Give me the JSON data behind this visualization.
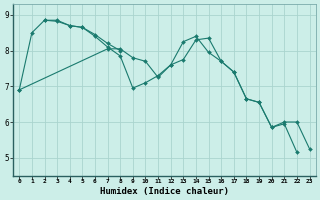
{
  "xlabel": "Humidex (Indice chaleur)",
  "background_color": "#cceee8",
  "grid_color": "#aad4ce",
  "line_color": "#1a7a6e",
  "xlim": [
    -0.5,
    23.5
  ],
  "ylim": [
    4.5,
    9.3
  ],
  "yticks": [
    5,
    6,
    7,
    8,
    9
  ],
  "xticks": [
    0,
    1,
    2,
    3,
    4,
    5,
    6,
    7,
    8,
    9,
    10,
    11,
    12,
    13,
    14,
    15,
    16,
    17,
    18,
    19,
    20,
    21,
    22,
    23
  ],
  "s1_x": [
    0,
    1,
    2,
    3,
    4,
    5,
    6,
    7,
    8
  ],
  "s1_y": [
    6.9,
    8.5,
    8.85,
    8.85,
    8.7,
    8.65,
    8.45,
    8.2,
    8.0
  ],
  "s2_x": [
    2,
    3,
    4,
    5,
    6,
    7,
    8,
    9,
    10,
    11,
    12,
    13,
    14,
    15,
    16,
    17,
    18,
    19,
    20,
    21,
    22
  ],
  "s2_y": [
    8.85,
    8.82,
    8.7,
    8.65,
    8.4,
    8.1,
    7.85,
    6.95,
    7.1,
    7.3,
    7.6,
    7.75,
    8.3,
    8.35,
    7.7,
    7.4,
    6.65,
    6.55,
    5.85,
    5.95,
    5.15
  ],
  "s3_x": [
    0,
    7,
    8,
    9,
    10,
    11,
    12,
    13,
    14,
    15,
    16,
    17,
    18,
    19,
    20,
    21,
    22,
    23
  ],
  "s3_y": [
    6.9,
    8.05,
    8.05,
    7.8,
    7.7,
    7.25,
    7.6,
    8.25,
    8.4,
    7.95,
    7.7,
    7.4,
    6.65,
    6.55,
    5.85,
    6.0,
    6.0,
    5.25
  ]
}
